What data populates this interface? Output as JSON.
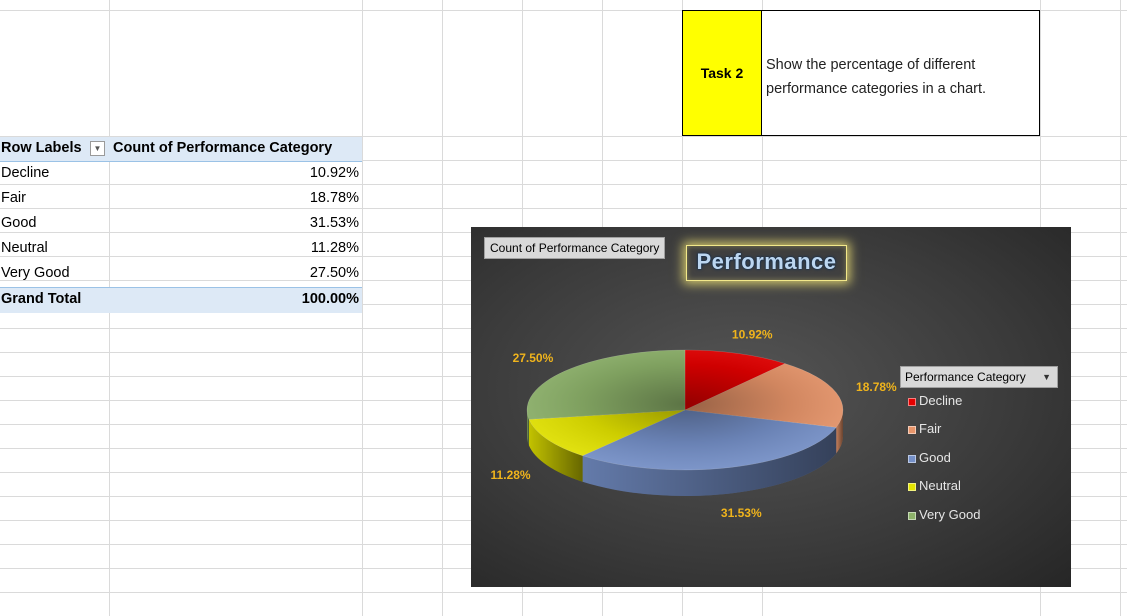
{
  "task": {
    "label": "Task 2",
    "text": "Show the percentage of different performance categories in a chart."
  },
  "pivot": {
    "header_row_labels": "Row Labels",
    "header_value": "Count of Performance Category",
    "rows": [
      {
        "label": "Decline",
        "value": "10.92%"
      },
      {
        "label": "Fair",
        "value": "18.78%"
      },
      {
        "label": "Good",
        "value": "31.53%"
      },
      {
        "label": "Neutral",
        "value": "11.28%"
      },
      {
        "label": "Very Good",
        "value": "27.50%"
      }
    ],
    "total_label": "Grand Total",
    "total_value": "100.00%"
  },
  "chart": {
    "value_field_button": "Count of Performance Category",
    "legend_field_button": "Performance Category"
  },
  "chart_data": {
    "type": "pie",
    "title": "Performance",
    "categories": [
      "Decline",
      "Fair",
      "Good",
      "Neutral",
      "Very Good"
    ],
    "values": [
      10.92,
      18.78,
      31.53,
      11.28,
      27.5
    ],
    "data_labels": [
      "10.92%",
      "18.78%",
      "31.53%",
      "11.28%",
      "27.50%"
    ],
    "colors": [
      "#e60000",
      "#e8956a",
      "#7590c8",
      "#e4e400",
      "#8db26a"
    ],
    "legend": "right",
    "style": "3d"
  }
}
